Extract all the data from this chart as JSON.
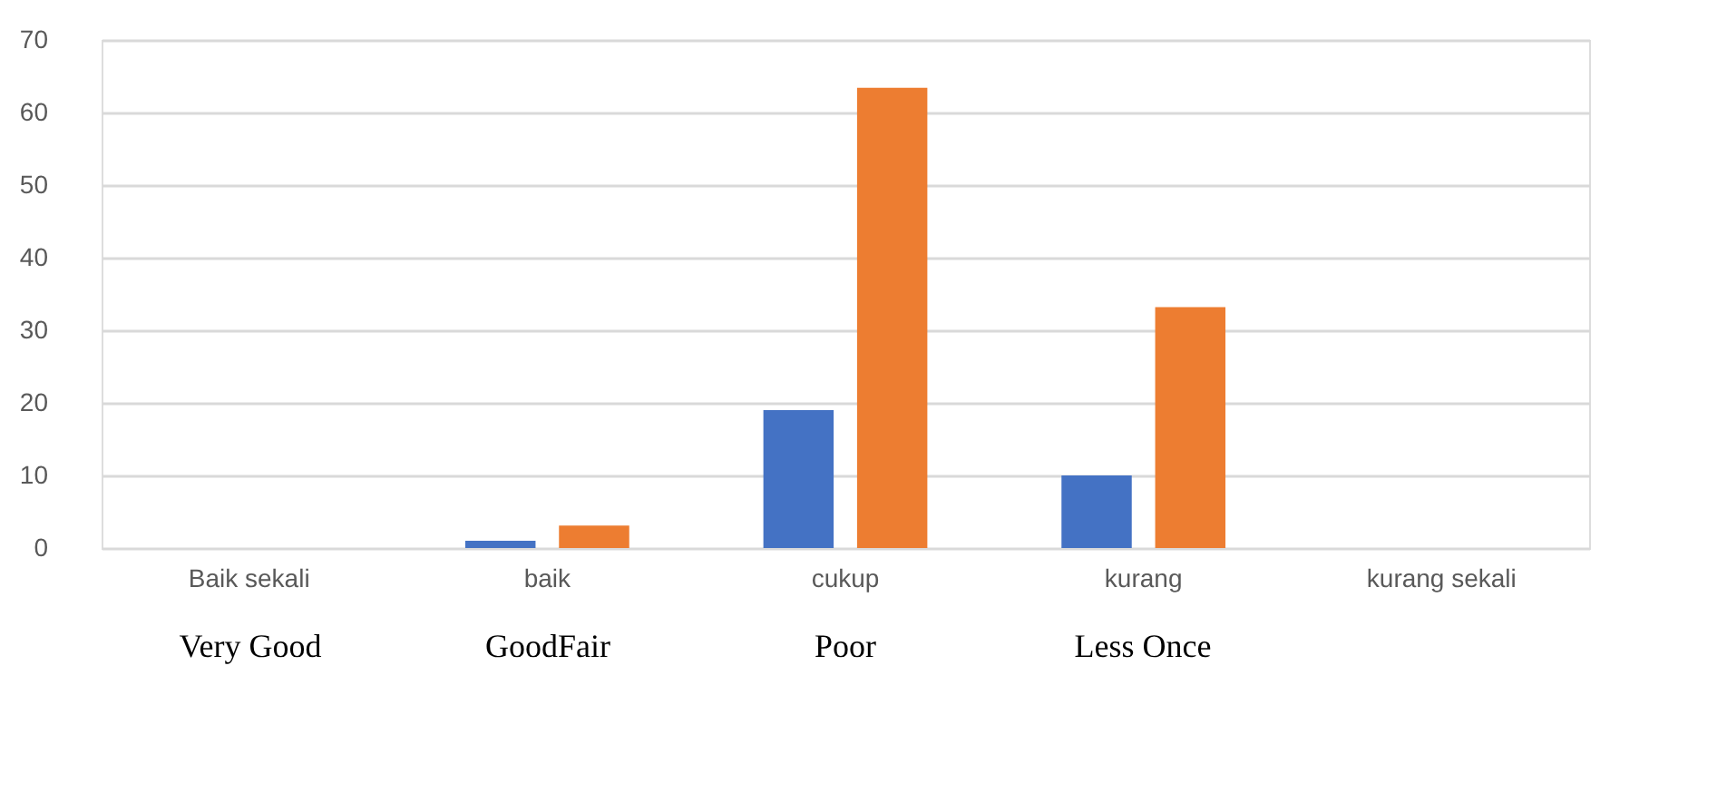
{
  "chart_data": {
    "type": "bar",
    "categories": [
      "Baik sekali",
      "baik",
      "cukup",
      "kurang",
      "kurang sekali"
    ],
    "series": [
      {
        "color": "#4472c4",
        "values": [
          0,
          1,
          19,
          10,
          0
        ]
      },
      {
        "color": "#ed7d31",
        "values": [
          0,
          3.1,
          63.4,
          33.2,
          0
        ]
      }
    ],
    "ylim": [
      0,
      70
    ],
    "yticks": [
      0,
      10,
      20,
      30,
      40,
      50,
      60,
      70
    ],
    "grid": "y",
    "legend": false,
    "annotations": [
      "Very Good",
      "GoodFair",
      "Poor",
      "Less Once"
    ]
  }
}
